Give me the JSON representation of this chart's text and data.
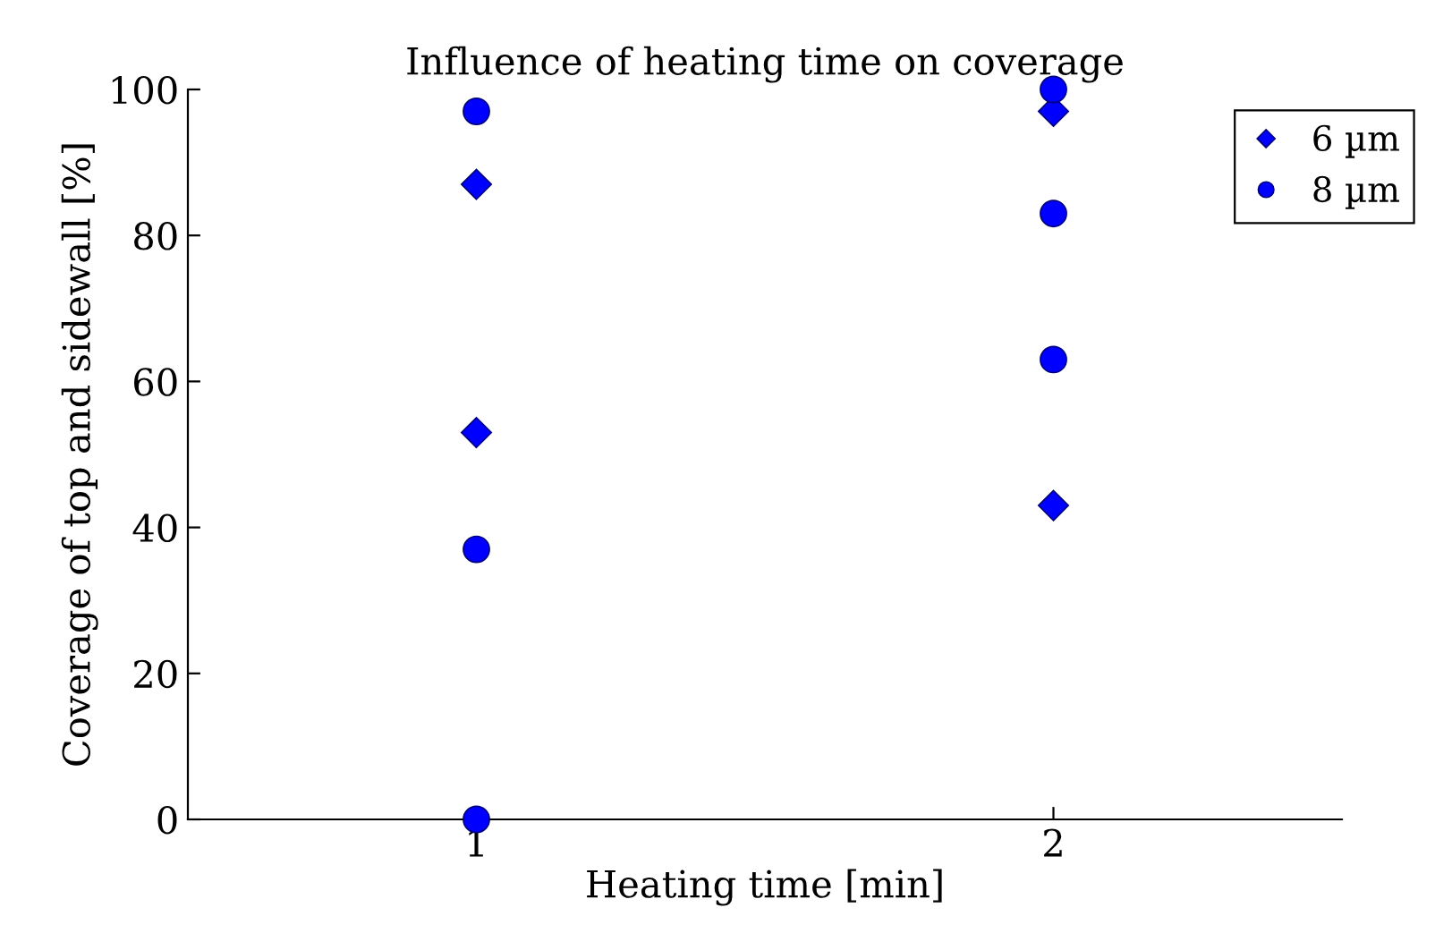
{
  "chart_data": {
    "type": "scatter",
    "title": "Influence of heating time on coverage",
    "xlabel": "Heating time [min]",
    "ylabel": "Coverage of top and sidewall [%]",
    "categories": [
      "1",
      "2"
    ],
    "ylim": [
      0,
      100
    ],
    "yticks": [
      0,
      20,
      40,
      60,
      80,
      100
    ],
    "grid": false,
    "legend": "top right",
    "series": [
      {
        "name": "6 µm",
        "color": "#0000ff",
        "marker": "diamond",
        "x": [
          "1",
          "1",
          "2",
          "2"
        ],
        "values": [
          87,
          53,
          97,
          43
        ]
      },
      {
        "name": "8 µm",
        "color": "#0000ff",
        "marker": "circle",
        "x": [
          "1",
          "1",
          "1",
          "2",
          "2",
          "2"
        ],
        "values": [
          97,
          37,
          0,
          100,
          83,
          63
        ]
      }
    ]
  }
}
